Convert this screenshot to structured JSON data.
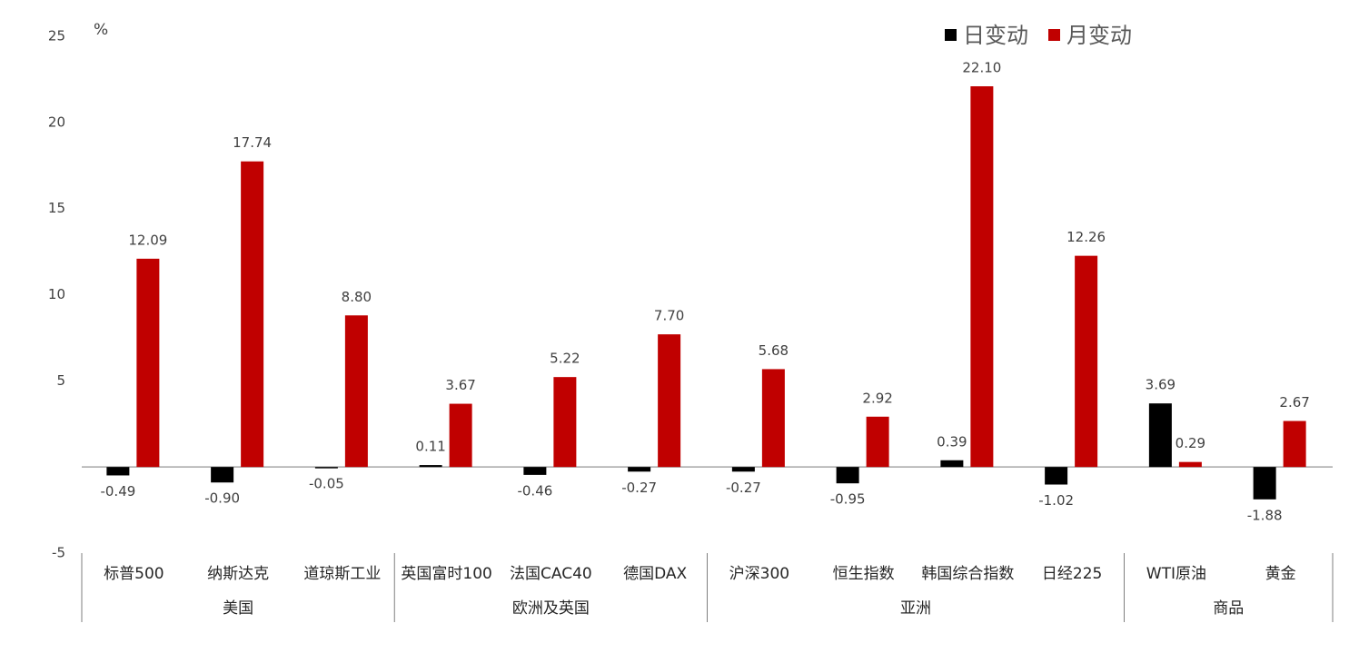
{
  "chart_data": {
    "type": "bar",
    "ylabel": "%",
    "groups": [
      {
        "name": "美国",
        "categories": [
          "标普500",
          "纳斯达克",
          "道琼斯工业"
        ]
      },
      {
        "name": "欧洲及英国",
        "categories": [
          "英国富时100",
          "法国CAC40",
          "德国DAX"
        ]
      },
      {
        "name": "亚洲",
        "categories": [
          "沪深300",
          "恒生指数",
          "韩国综合指数",
          "日经225"
        ]
      },
      {
        "name": "商品",
        "categories": [
          "WTI原油",
          "黄金"
        ]
      }
    ],
    "series": [
      {
        "name": "日变动",
        "color": "#000000",
        "values": [
          -0.49,
          -0.9,
          -0.05,
          0.11,
          -0.46,
          -0.27,
          -0.27,
          -0.95,
          0.39,
          -1.02,
          3.69,
          -1.88
        ],
        "value_labels": [
          "-0.49",
          "-0.90",
          "-0.05",
          "0.11",
          "-0.46",
          "-0.27",
          "-0.27",
          "-0.95",
          "0.39",
          "-1.02",
          "3.69",
          "-1.88"
        ]
      },
      {
        "name": "月变动",
        "color": "#c00000",
        "values": [
          12.09,
          17.74,
          8.8,
          3.67,
          5.22,
          7.7,
          5.68,
          2.92,
          22.1,
          12.26,
          0.29,
          2.67
        ],
        "value_labels": [
          "12.09",
          "17.74",
          "8.80",
          "3.67",
          "5.22",
          "7.70",
          "5.68",
          "2.92",
          "22.10",
          "12.26",
          "0.29",
          "2.67"
        ]
      }
    ],
    "ylim": [
      -5,
      25
    ],
    "yticks": [
      -5,
      5,
      10,
      15,
      20,
      25
    ],
    "legend": "top-right"
  }
}
